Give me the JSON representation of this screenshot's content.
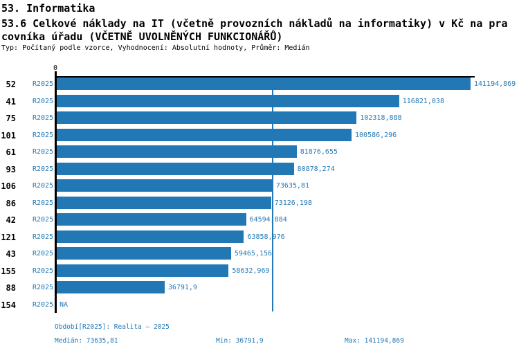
{
  "header": {
    "line1": "53. Informatika",
    "line2": "53.6 Celkové náklady na IT (včetně provozních nákladů na informatiky) v Kč na pra",
    "line3": "covníka úřadu (VČETNĚ UVOLNĚNÝCH FUNKCIONÁŘŮ)",
    "meta": "Typ: Počítaný podle vzorce, Vyhodnocení: Absolutní hodnoty, Průměr: Medián"
  },
  "chart_data": {
    "type": "bar",
    "orientation": "horizontal",
    "title": "53.6 Celkové náklady na IT (včetně provozních nákladů na informatiky) v Kč na pracovníka úřadu (VČETNĚ UVOLNĚNÝCH FUNKCIONÁŘŮ)",
    "axis_zero_label": "0",
    "series_label": "R2025",
    "xlim": [
      0,
      141194.869
    ],
    "median_value": 73635.81,
    "bar_color": "#2278b5",
    "label_color": "#2278b5",
    "categories": [
      "52",
      "41",
      "75",
      "101",
      "61",
      "93",
      "106",
      "86",
      "42",
      "121",
      "43",
      "155",
      "88",
      "154"
    ],
    "rows": [
      {
        "id": "52",
        "period": "R2025",
        "value": 141194.869,
        "value_label": "141194,869"
      },
      {
        "id": "41",
        "period": "R2025",
        "value": 116821.038,
        "value_label": "116821,038"
      },
      {
        "id": "75",
        "period": "R2025",
        "value": 102318.888,
        "value_label": "102318,888"
      },
      {
        "id": "101",
        "period": "R2025",
        "value": 100586.296,
        "value_label": "100586,296"
      },
      {
        "id": "61",
        "period": "R2025",
        "value": 81876.655,
        "value_label": "81876,655"
      },
      {
        "id": "93",
        "period": "R2025",
        "value": 80878.274,
        "value_label": "80878,274"
      },
      {
        "id": "106",
        "period": "R2025",
        "value": 73635.81,
        "value_label": "73635,81"
      },
      {
        "id": "86",
        "period": "R2025",
        "value": 73126.198,
        "value_label": "73126,198"
      },
      {
        "id": "42",
        "period": "R2025",
        "value": 64594.884,
        "value_label": "64594,884"
      },
      {
        "id": "121",
        "period": "R2025",
        "value": 63858.976,
        "value_label": "63858,976"
      },
      {
        "id": "43",
        "period": "R2025",
        "value": 59465.156,
        "value_label": "59465,156"
      },
      {
        "id": "155",
        "period": "R2025",
        "value": 58632.969,
        "value_label": "58632,969"
      },
      {
        "id": "88",
        "period": "R2025",
        "value": 36791.9,
        "value_label": "36791,9"
      },
      {
        "id": "154",
        "period": "R2025",
        "value": null,
        "value_label": "NA"
      }
    ]
  },
  "footer": {
    "period": "Období[R2025]: Realita – 2025",
    "median": "Medián: 73635,81",
    "min": "Min: 36791,9",
    "max": "Max: 141194,869"
  }
}
